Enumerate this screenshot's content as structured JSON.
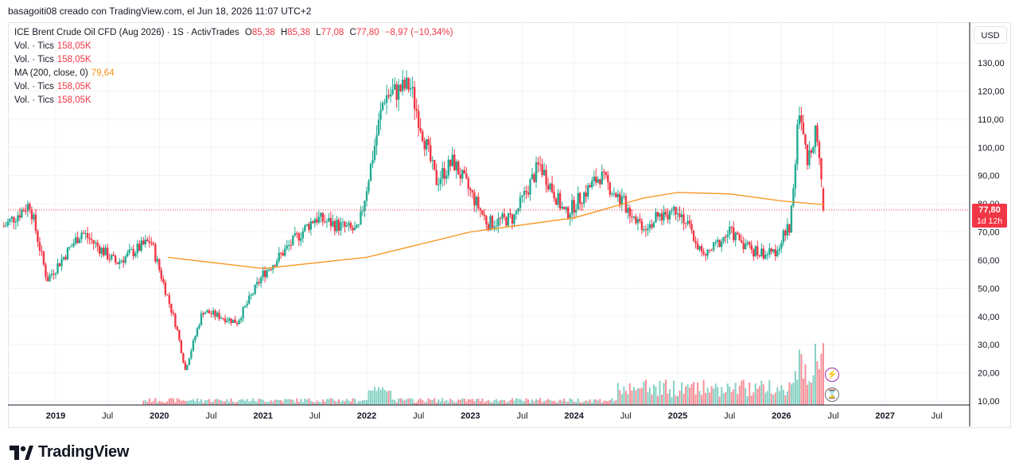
{
  "header": {
    "caption": "basagoiti08 creado con TradingView.com, el Jun 18, 2026 11:07 UTC+2"
  },
  "legend": {
    "symbol": "ICE Brent Crude Oil CFD (Aug 2026) · 1S · ActivTrades",
    "ohlc": {
      "o_key": "O",
      "o": "85,38",
      "h_key": "H",
      "h": "85,38",
      "l_key": "L",
      "l": "77,08",
      "c_key": "C",
      "c": "77,80",
      "change": "−8,97 (−10,34%)"
    },
    "rows": [
      {
        "label": "Vol. · Tics",
        "value": "158,05K"
      },
      {
        "label": "Vol. · Tics",
        "value": "158,05K"
      },
      {
        "label": "MA (200, close, 0)",
        "value": "79,64"
      },
      {
        "label": "Vol. · Tics",
        "value": "158,05K"
      },
      {
        "label": "Vol. · Tics",
        "value": "158,05K"
      }
    ]
  },
  "currency": "USD",
  "price_tag": {
    "price": "77,80",
    "countdown": "1d 12h"
  },
  "logo_text": "TradingView",
  "colors": {
    "up": "#22ab94",
    "down": "#f23645",
    "ma": "#f7931a",
    "grid": "#f0f3fa"
  },
  "icons": [
    "lightning-icon",
    "hourglass-icon",
    "tradingview-logo-icon"
  ],
  "chart_data": {
    "type": "candlestick",
    "title": "ICE Brent Crude Oil CFD (Aug 2026) · 1S · ActivTrades",
    "x_axis_labels": [
      "2019",
      "Jul",
      "2020",
      "Jul",
      "2021",
      "Jul",
      "2022",
      "Jul",
      "2023",
      "Jul",
      "2024",
      "Jul",
      "2025",
      "Jul",
      "2026",
      "Jul",
      "2027",
      "Jul"
    ],
    "y_axis_labels": [
      "10,00",
      "20,00",
      "30,00",
      "40,00",
      "50,00",
      "60,00",
      "70,00",
      "80,00",
      "90,00",
      "100,00",
      "110,00",
      "120,00",
      "130,00"
    ],
    "ylim": [
      10,
      130
    ],
    "x_range": [
      "2018-06",
      "2027-11"
    ],
    "close_path": [
      {
        "date": "2018-07",
        "close": 72
      },
      {
        "date": "2018-10",
        "close": 80
      },
      {
        "date": "2018-12",
        "close": 53
      },
      {
        "date": "2019-04",
        "close": 70
      },
      {
        "date": "2019-08",
        "close": 59
      },
      {
        "date": "2019-12",
        "close": 67
      },
      {
        "date": "2020-03",
        "close": 36
      },
      {
        "date": "2020-04",
        "close": 21
      },
      {
        "date": "2020-06",
        "close": 42
      },
      {
        "date": "2020-10",
        "close": 38
      },
      {
        "date": "2021-01",
        "close": 55
      },
      {
        "date": "2021-07",
        "close": 75
      },
      {
        "date": "2021-12",
        "close": 70
      },
      {
        "date": "2022-03",
        "close": 118
      },
      {
        "date": "2022-06",
        "close": 122
      },
      {
        "date": "2022-09",
        "close": 88
      },
      {
        "date": "2022-11",
        "close": 95
      },
      {
        "date": "2023-03",
        "close": 73
      },
      {
        "date": "2023-06",
        "close": 75
      },
      {
        "date": "2023-09",
        "close": 94
      },
      {
        "date": "2023-12",
        "close": 76
      },
      {
        "date": "2024-04",
        "close": 90
      },
      {
        "date": "2024-09",
        "close": 72
      },
      {
        "date": "2025-01",
        "close": 79
      },
      {
        "date": "2025-04",
        "close": 61
      },
      {
        "date": "2025-07",
        "close": 70
      },
      {
        "date": "2025-10",
        "close": 63
      },
      {
        "date": "2025-12",
        "close": 62
      },
      {
        "date": "2026-02",
        "close": 72
      },
      {
        "date": "2026-03",
        "close": 112
      },
      {
        "date": "2026-04",
        "close": 94
      },
      {
        "date": "2026-05",
        "close": 108
      },
      {
        "date": "2026-06",
        "close": 77.8
      }
    ],
    "moving_average": {
      "name": "MA (200, close, 0)",
      "points": [
        {
          "date": "2020-02",
          "value": 61
        },
        {
          "date": "2021-01",
          "value": 57
        },
        {
          "date": "2022-01",
          "value": 61
        },
        {
          "date": "2023-01",
          "value": 70
        },
        {
          "date": "2024-01",
          "value": 75
        },
        {
          "date": "2024-09",
          "value": 82
        },
        {
          "date": "2025-01",
          "value": 84
        },
        {
          "date": "2025-07",
          "value": 83.5
        },
        {
          "date": "2026-01",
          "value": 81
        },
        {
          "date": "2026-06",
          "value": 79.64
        }
      ]
    },
    "last_price": 77.8,
    "volume_note": "weekly volume histogram along bottom, spikes in 2022 and 2026"
  }
}
